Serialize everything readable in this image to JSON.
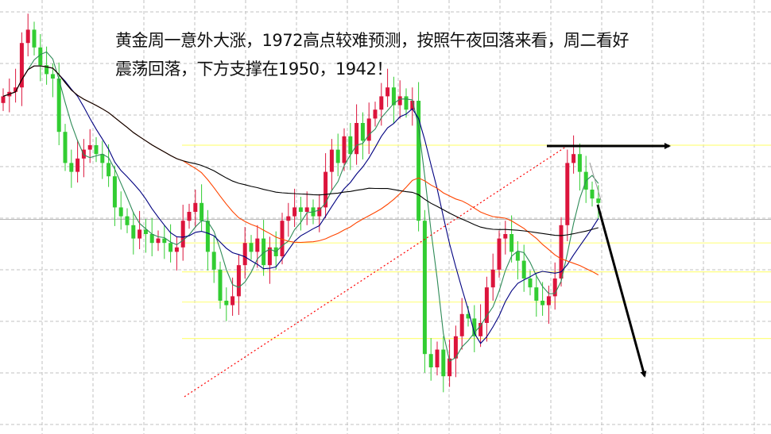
{
  "annotation": {
    "line1": "黄金周一意外大涨，1972高点较难预测，按照午夜回落来看，周二看好",
    "line2": "震荡回落，下方支撑在1950，1942！"
  },
  "chart_data": {
    "type": "candlestick",
    "title": "",
    "xlabel": "",
    "ylabel": "",
    "grid": true,
    "ylim": [
      1908,
      2004
    ],
    "close": [
      1983,
      1984,
      1985,
      1995,
      1998,
      1994,
      1990,
      1988,
      1987,
      1975,
      1968,
      1966,
      1969,
      1971,
      1972,
      1970,
      1968,
      1965,
      1958,
      1956,
      1954,
      1951,
      1953,
      1952,
      1950,
      1951,
      1950,
      1948,
      1949,
      1955,
      1957,
      1959,
      1955,
      1948,
      1944,
      1937,
      1936,
      1938,
      1945,
      1950,
      1948,
      1951,
      1945,
      1949,
      1947,
      1955,
      1956,
      1958,
      1957,
      1958,
      1956,
      1958,
      1966,
      1971,
      1968,
      1974,
      1970,
      1977,
      1973,
      1978,
      1980,
      1983,
      1985,
      1981,
      1983,
      1980,
      1982,
      1955,
      1925,
      1922,
      1926,
      1920,
      1924,
      1929,
      1934,
      1933,
      1929,
      1932,
      1940,
      1944,
      1951,
      1952,
      1948,
      1946,
      1942,
      1940,
      1937,
      1936,
      1938,
      1942,
      1954,
      1968,
      1970,
      1966,
      1962,
      1960,
      1959
    ],
    "moving_averages": [
      {
        "period": 5,
        "color": "#2e8b57"
      },
      {
        "period": 10,
        "color": "#000080"
      },
      {
        "period": 30,
        "color": "#ff4500"
      },
      {
        "period": 60,
        "color": "#000000"
      }
    ],
    "horizontal_levels": [
      1972,
      1950,
      1943.5,
      1936.7,
      1928.5
    ],
    "reference_level": 1955.3,
    "colors": {
      "up": "#dc143c",
      "down": "#32cd32",
      "grid": "#c0c0c0",
      "levels": "#ffff80",
      "trendline": "#ff0000"
    }
  }
}
